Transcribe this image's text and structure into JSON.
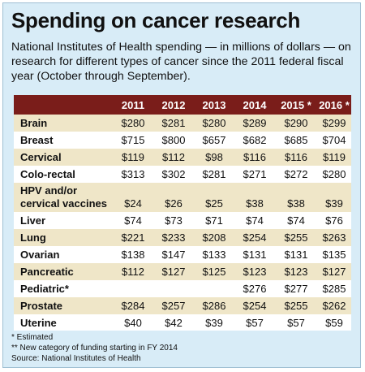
{
  "title": "Spending on cancer research",
  "subtitle": "National Institutes of Health spending — in millions of dollars — on research for different types of cancer since the 2011 federal fiscal year (October through September).",
  "colors": {
    "background": "#d8ecf7",
    "header": "#7a1d1a",
    "header_text": "#ffffff",
    "row_shaded": "#efe6c8",
    "row_plain": "#ffffff",
    "text": "#111111"
  },
  "chart_data": {
    "type": "table",
    "columns": [
      "2011",
      "2012",
      "2013",
      "2014",
      "2015 *",
      "2016 *"
    ],
    "rows": [
      {
        "label": [
          "Brain"
        ],
        "values": [
          "$280",
          "$281",
          "$280",
          "$289",
          "$290",
          "$299"
        ]
      },
      {
        "label": [
          "Breast"
        ],
        "values": [
          "$715",
          "$800",
          "$657",
          "$682",
          "$685",
          "$704"
        ]
      },
      {
        "label": [
          "Cervical"
        ],
        "values": [
          "$119",
          "$112",
          "$98",
          "$116",
          "$116",
          "$119"
        ]
      },
      {
        "label": [
          "Colo-rectal"
        ],
        "values": [
          "$313",
          "$302",
          "$281",
          "$271",
          "$272",
          "$280"
        ]
      },
      {
        "label": [
          "HPV and/or",
          "cervical vaccines"
        ],
        "values": [
          "$24",
          "$26",
          "$25",
          "$38",
          "$38",
          "$39"
        ]
      },
      {
        "label": [
          "Liver"
        ],
        "values": [
          "$74",
          "$73",
          "$71",
          "$74",
          "$74",
          "$76"
        ]
      },
      {
        "label": [
          "Lung"
        ],
        "values": [
          "$221",
          "$233",
          "$208",
          "$254",
          "$255",
          "$263"
        ]
      },
      {
        "label": [
          "Ovarian"
        ],
        "values": [
          "$138",
          "$147",
          "$133",
          "$131",
          "$131",
          "$135"
        ]
      },
      {
        "label": [
          "Pancreatic"
        ],
        "values": [
          "$112",
          "$127",
          "$125",
          "$123",
          "$123",
          "$127"
        ]
      },
      {
        "label": [
          "Pediatric*"
        ],
        "values": [
          "",
          "",
          "",
          "$276",
          "$277",
          "$285"
        ]
      },
      {
        "label": [
          "Prostate"
        ],
        "values": [
          "$284",
          "$257",
          "$286",
          "$254",
          "$255",
          "$262"
        ]
      },
      {
        "label": [
          "Uterine"
        ],
        "values": [
          "$40",
          "$42",
          "$39",
          "$57",
          "$57",
          "$59"
        ]
      }
    ]
  },
  "notes": [
    "* Estimated",
    "** New category of funding starting in FY 2014",
    "Source: National Institutes of Health"
  ]
}
